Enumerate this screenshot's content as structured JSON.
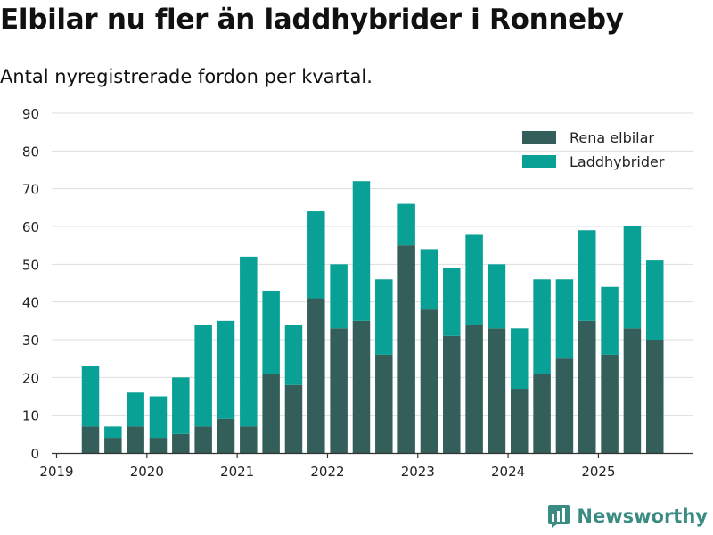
{
  "chart_data": {
    "type": "bar",
    "stacked": true,
    "title": "Elbilar nu fler än laddhybrider i Ronneby",
    "subtitle": "Antal nyregistrerade fordon per kvartal.",
    "xlabel": "",
    "ylabel": "",
    "ylim": [
      0,
      90
    ],
    "yticks": [
      0,
      10,
      20,
      30,
      40,
      50,
      60,
      70,
      80,
      90
    ],
    "xticks": [
      "2019",
      "2020",
      "2021",
      "2022",
      "2023",
      "2024",
      "2025"
    ],
    "grid": true,
    "legend_position": "top-right",
    "categories": [
      "2019 Q2",
      "2019 Q3",
      "2019 Q4",
      "2020 Q1",
      "2020 Q2",
      "2020 Q3",
      "2020 Q4",
      "2021 Q1",
      "2021 Q2",
      "2021 Q3",
      "2021 Q4",
      "2022 Q1",
      "2022 Q2",
      "2022 Q3",
      "2022 Q4",
      "2023 Q1",
      "2023 Q2",
      "2023 Q3",
      "2023 Q4",
      "2024 Q1",
      "2024 Q2",
      "2024 Q3",
      "2024 Q4",
      "2025 Q1",
      "2025 Q2",
      "2025 Q3"
    ],
    "series": [
      {
        "name": "Rena elbilar",
        "color": "#335e59",
        "values": [
          7,
          4,
          7,
          4,
          5,
          7,
          9,
          7,
          21,
          18,
          41,
          33,
          35,
          26,
          55,
          38,
          31,
          34,
          33,
          17,
          21,
          25,
          35,
          26,
          33,
          30
        ]
      },
      {
        "name": "Laddhybrider",
        "color": "#09a195",
        "values": [
          16,
          3,
          9,
          11,
          15,
          27,
          26,
          45,
          22,
          16,
          23,
          17,
          37,
          20,
          11,
          16,
          18,
          24,
          17,
          16,
          25,
          21,
          24,
          18,
          27,
          21
        ]
      }
    ]
  },
  "brand": {
    "name": "Newsworthy",
    "color": "#3a8c83"
  }
}
